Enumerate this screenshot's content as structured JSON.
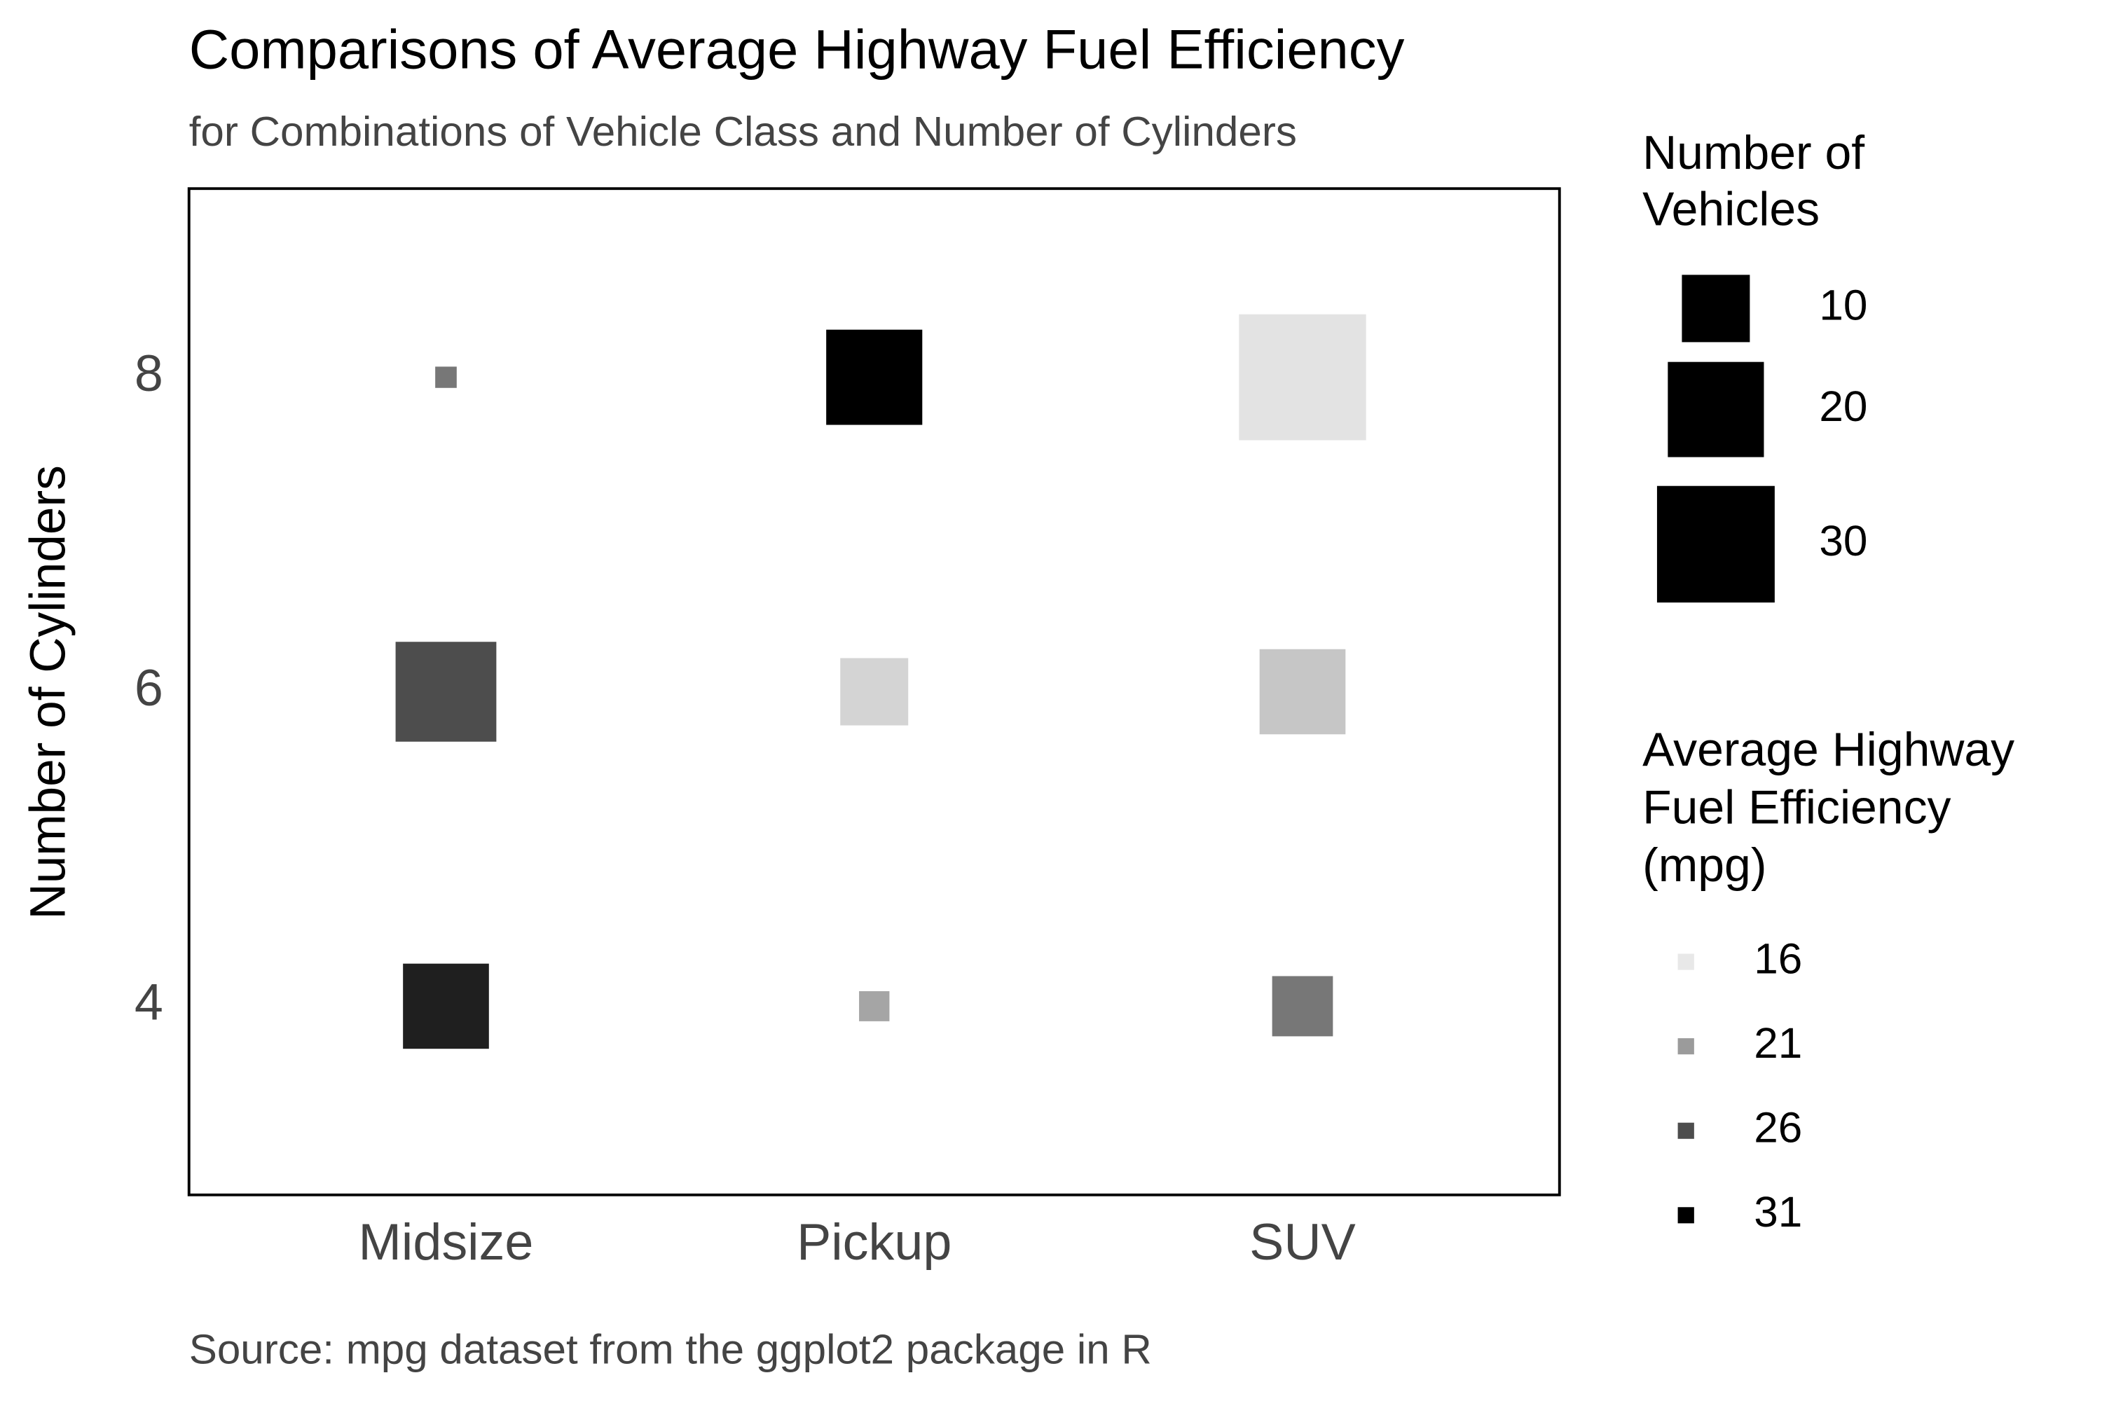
{
  "chart_data": {
    "type": "scatter",
    "title": "Comparisons of Average Highway Fuel Efficiency",
    "subtitle": "for Combinations of Vehicle Class and Number of Cylinders",
    "caption": "Source: mpg dataset from the ggplot2 package in R",
    "y_label": "Number of Cylinders",
    "categories": [
      "Midsize",
      "Pickup",
      "SUV"
    ],
    "x": [
      "Midsize",
      "Midsize",
      "Midsize",
      "Pickup",
      "Pickup",
      "Pickup",
      "SUV",
      "SUV",
      "SUV"
    ],
    "y": [
      8,
      6,
      4,
      8,
      6,
      4,
      8,
      6,
      4
    ],
    "sizes": [
      1,
      22,
      16,
      20,
      10,
      2,
      35,
      16,
      8
    ],
    "mpg": [
      23.3,
      26,
      29,
      31,
      17.3,
      20.3,
      16.3,
      18.2,
      23.3
    ],
    "ylim": [
      2.8,
      9.2
    ],
    "yticks": [
      4,
      6,
      8
    ],
    "size_legend_title": [
      "Number of",
      "Vehicles"
    ],
    "size_breaks": [
      10,
      20,
      30
    ],
    "color_legend_title": [
      "Average Highway",
      "Fuel Efficiency",
      "(mpg)"
    ],
    "color_breaks": [
      16,
      21,
      26,
      31
    ],
    "color_range": [
      "#e8e8e8",
      "#000000"
    ]
  }
}
